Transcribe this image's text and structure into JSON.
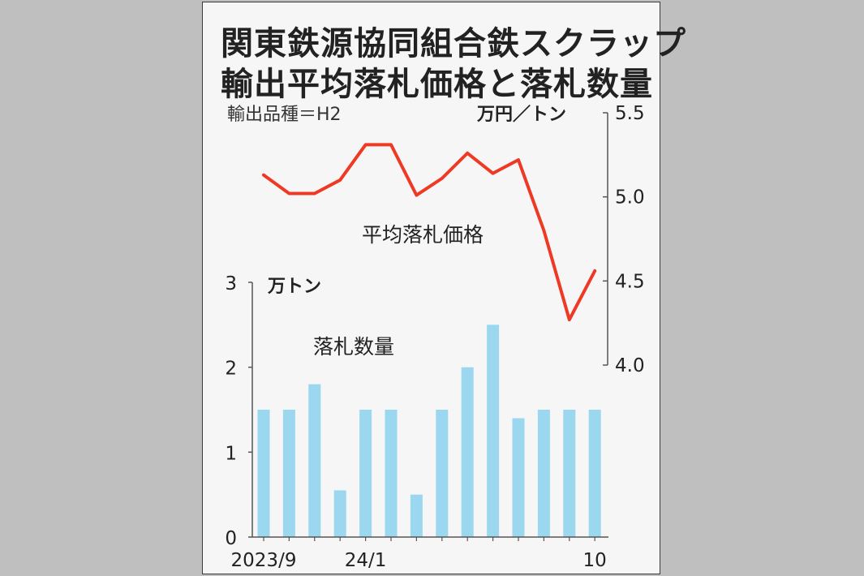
{
  "chart_data": {
    "title_lines": [
      "関東鉄源協同組合鉄スクラップ",
      "輸出平均落札価格と落札数量"
    ],
    "subtitle": "輸出品種＝H2",
    "price_unit": "万円／トン",
    "quantity_unit": "万トン",
    "price_label": "平均落札価格",
    "quantity_label": "落札数量",
    "x_tick_labels": [
      {
        "index": 0,
        "label": "2023/9"
      },
      {
        "index": 4,
        "label": "24/1"
      },
      {
        "index": 13,
        "label": "10"
      }
    ],
    "periods": [
      "2023/9",
      "2023/10",
      "2023/11",
      "2023/12",
      "2024/1",
      "2024/2",
      "2024/3",
      "2024/4",
      "2024/5",
      "2024/6",
      "2024/7",
      "2024/8",
      "2024/9",
      "2024/10"
    ],
    "series": [
      {
        "name": "平均落札価格",
        "type": "line",
        "axis": "right",
        "color": "#ee3a24",
        "values": [
          5.13,
          5.02,
          5.02,
          5.1,
          5.31,
          5.31,
          5.01,
          5.11,
          5.26,
          5.14,
          5.22,
          4.8,
          4.27,
          4.56
        ]
      },
      {
        "name": "落札数量",
        "type": "bar",
        "axis": "left",
        "color": "#9bd8f0",
        "values": [
          1.5,
          1.5,
          1.8,
          0.55,
          1.5,
          1.5,
          0.5,
          1.5,
          2.0,
          2.5,
          1.4,
          1.5,
          1.5,
          1.5
        ]
      }
    ],
    "left_axis": {
      "range": [
        0,
        3
      ],
      "ticks": [
        "0",
        "1",
        "2",
        "3"
      ]
    },
    "right_axis": {
      "range": [
        4.0,
        5.5
      ],
      "ticks": [
        "4.0",
        "4.5",
        "5.0",
        "5.5"
      ]
    }
  }
}
